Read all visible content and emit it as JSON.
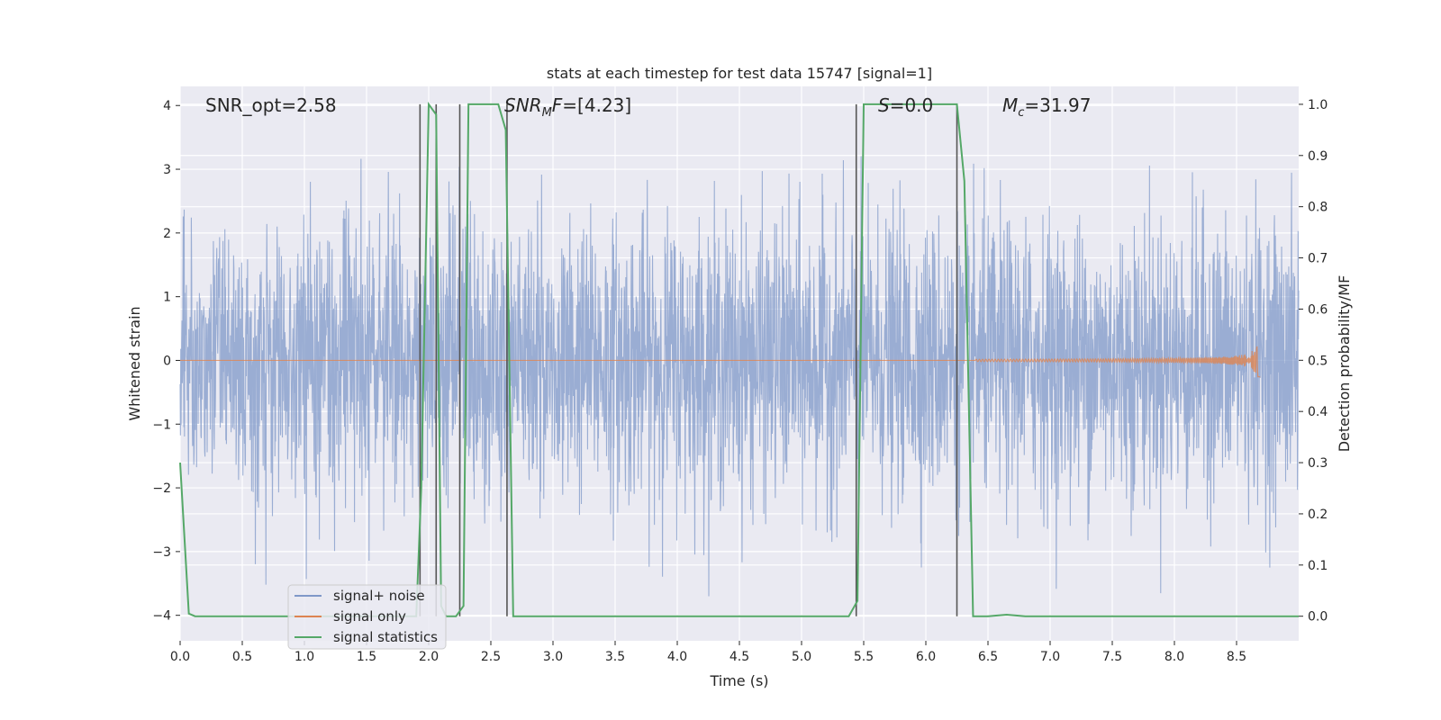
{
  "chart_data": {
    "type": "line",
    "title": "stats at each timestep for test data 15747 [signal=1]",
    "xlabel": "Time (s)",
    "ylabel_left": "Whitened strain",
    "ylabel_right": "Detection probability/MF",
    "xlim": [
      0.0,
      9.0
    ],
    "ylim_left": [
      -4.4,
      4.3
    ],
    "ylim_right": [
      -0.048,
      1.035
    ],
    "x_ticks": [
      "0.0",
      "0.5",
      "1.0",
      "1.5",
      "2.0",
      "2.5",
      "3.0",
      "3.5",
      "4.0",
      "4.5",
      "5.0",
      "5.5",
      "6.0",
      "6.5",
      "7.0",
      "7.5",
      "8.0",
      "8.5"
    ],
    "y_ticks_left": [
      "−4",
      "−3",
      "−2",
      "−1",
      "0",
      "1",
      "2",
      "3",
      "4"
    ],
    "y_ticks_right": [
      "0.0",
      "0.1",
      "0.2",
      "0.3",
      "0.4",
      "0.5",
      "0.6",
      "0.7",
      "0.8",
      "0.9",
      "1.0"
    ],
    "annotations": {
      "snr_opt": "SNR_opt=2.58",
      "snr_mf": "=[4.23]",
      "s_stat": "=0.0",
      "mc": "=31.97"
    },
    "legend": {
      "placement": "lower-left",
      "entries": [
        "signal+ noise",
        "signal only",
        "signal statistics"
      ]
    },
    "colors": {
      "noise": "#7f98c8",
      "signal": "#dd8452",
      "stats": "#55a868",
      "vlines": "#555555",
      "background": "#eaeaf2",
      "grid": "#ffffff"
    },
    "noise_series": {
      "name": "signal+ noise",
      "x_range": [
        0.0,
        9.0
      ],
      "typical_amplitude": 1.5,
      "max_abs": 3.7
    },
    "signal_series": {
      "name": "signal only",
      "chirp_start": 6.4,
      "chirp_peak_time": 8.67,
      "peak_amplitude": 0.6
    },
    "stats_series": {
      "name": "signal statistics",
      "x": [
        0.0,
        0.07,
        0.12,
        1.9,
        1.94,
        2.0,
        2.06,
        2.1,
        2.14,
        2.22,
        2.28,
        2.32,
        2.56,
        2.62,
        2.68,
        5.38,
        5.45,
        5.5,
        6.25,
        6.31,
        6.38,
        6.5,
        6.65,
        6.8,
        9.0
      ],
      "y": [
        0.3,
        0.005,
        0.0,
        0.0,
        0.25,
        1.0,
        0.98,
        0.02,
        0.0,
        0.0,
        0.02,
        1.0,
        1.0,
        0.95,
        0.0,
        0.0,
        0.03,
        1.0,
        1.0,
        0.85,
        0.0,
        0.0,
        0.003,
        0.0,
        0.0
      ]
    },
    "vertical_lines_x": [
      1.93,
      2.06,
      2.25,
      2.63,
      5.44,
      6.25
    ]
  }
}
